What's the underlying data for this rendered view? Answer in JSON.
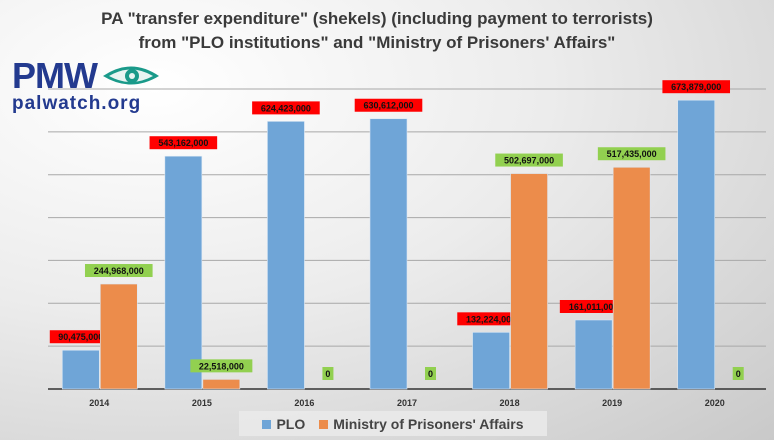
{
  "title_line1": "PA \"transfer expenditure\" (shekels) (including payment to terrorists)",
  "title_line2": "from \"PLO institutions\" and \"Ministry of Prisoners' Affairs\"",
  "logo": {
    "main": "PMW",
    "sub": "palwatch.org"
  },
  "colors": {
    "plo": "#6fa5d7",
    "ministry": "#ec8c4b",
    "plo_label": "#ff0000",
    "ministry_label": "#92d050"
  },
  "chart_data": {
    "type": "bar",
    "title": "PA \"transfer expenditure\" (shekels) (including payment to terrorists) from \"PLO institutions\" and \"Ministry of Prisoners' Affairs\"",
    "categories": [
      "2014",
      "2015",
      "2016",
      "2017",
      "2018",
      "2019",
      "2020"
    ],
    "series": [
      {
        "name": "PLO",
        "values": [
          90475000,
          543162000,
          624423000,
          630612000,
          132224000,
          161011000,
          673879000
        ],
        "labels": [
          "90,475,000",
          "543,162,000",
          "624,423,000",
          "630,612,000",
          "132,224,000",
          "161,011,000",
          "673,879,000"
        ]
      },
      {
        "name": "Ministry of Prisoners' Affairs",
        "values": [
          244968000,
          22518000,
          0,
          0,
          502697000,
          517435000,
          0
        ],
        "labels": [
          "244,968,000",
          "22,518,000",
          "0",
          "0",
          "502,697,000",
          "517,435,000",
          "0"
        ]
      }
    ],
    "ylim": [
      0,
      700000000
    ],
    "grid_step": 100000000,
    "grid": true,
    "legend": "bottom"
  }
}
